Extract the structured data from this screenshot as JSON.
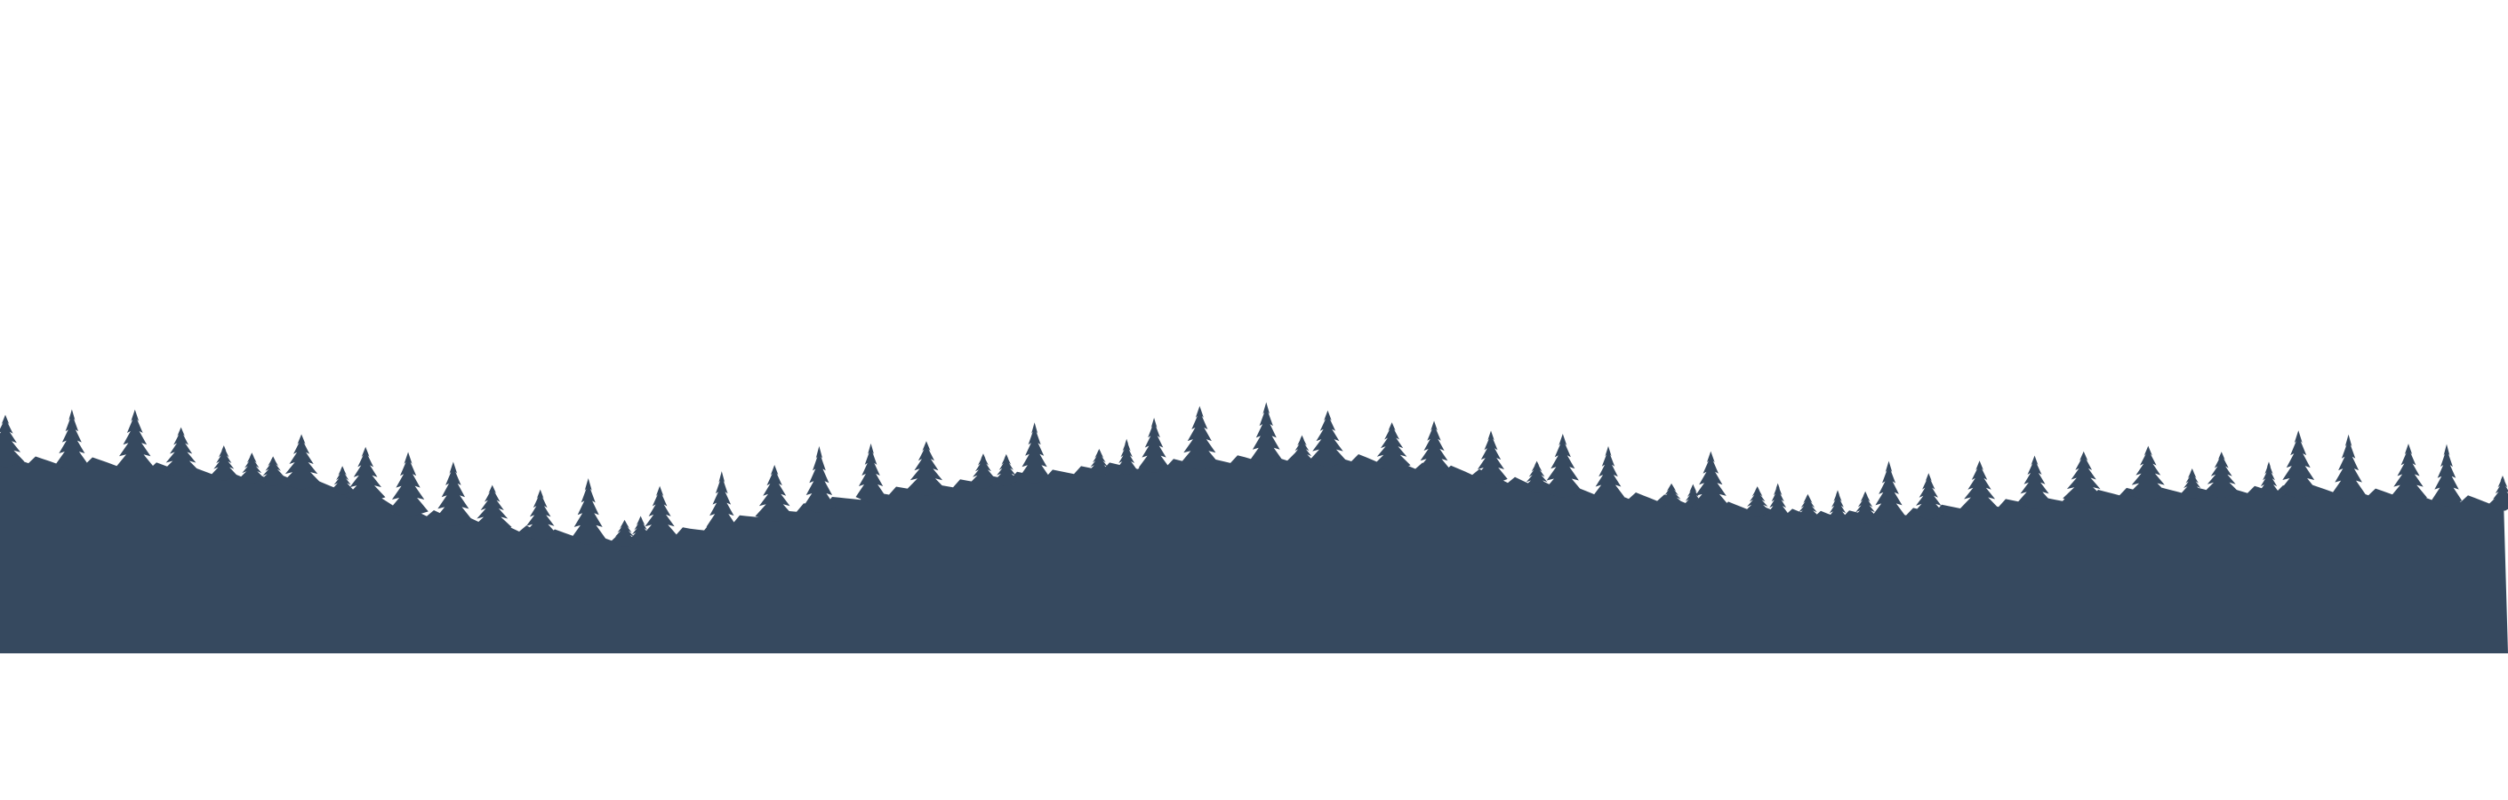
{
  "scene": {
    "subject": "forest-treeline-silhouette",
    "colors": {
      "background": "#ffffff",
      "silhouette": "#36495f"
    }
  }
}
